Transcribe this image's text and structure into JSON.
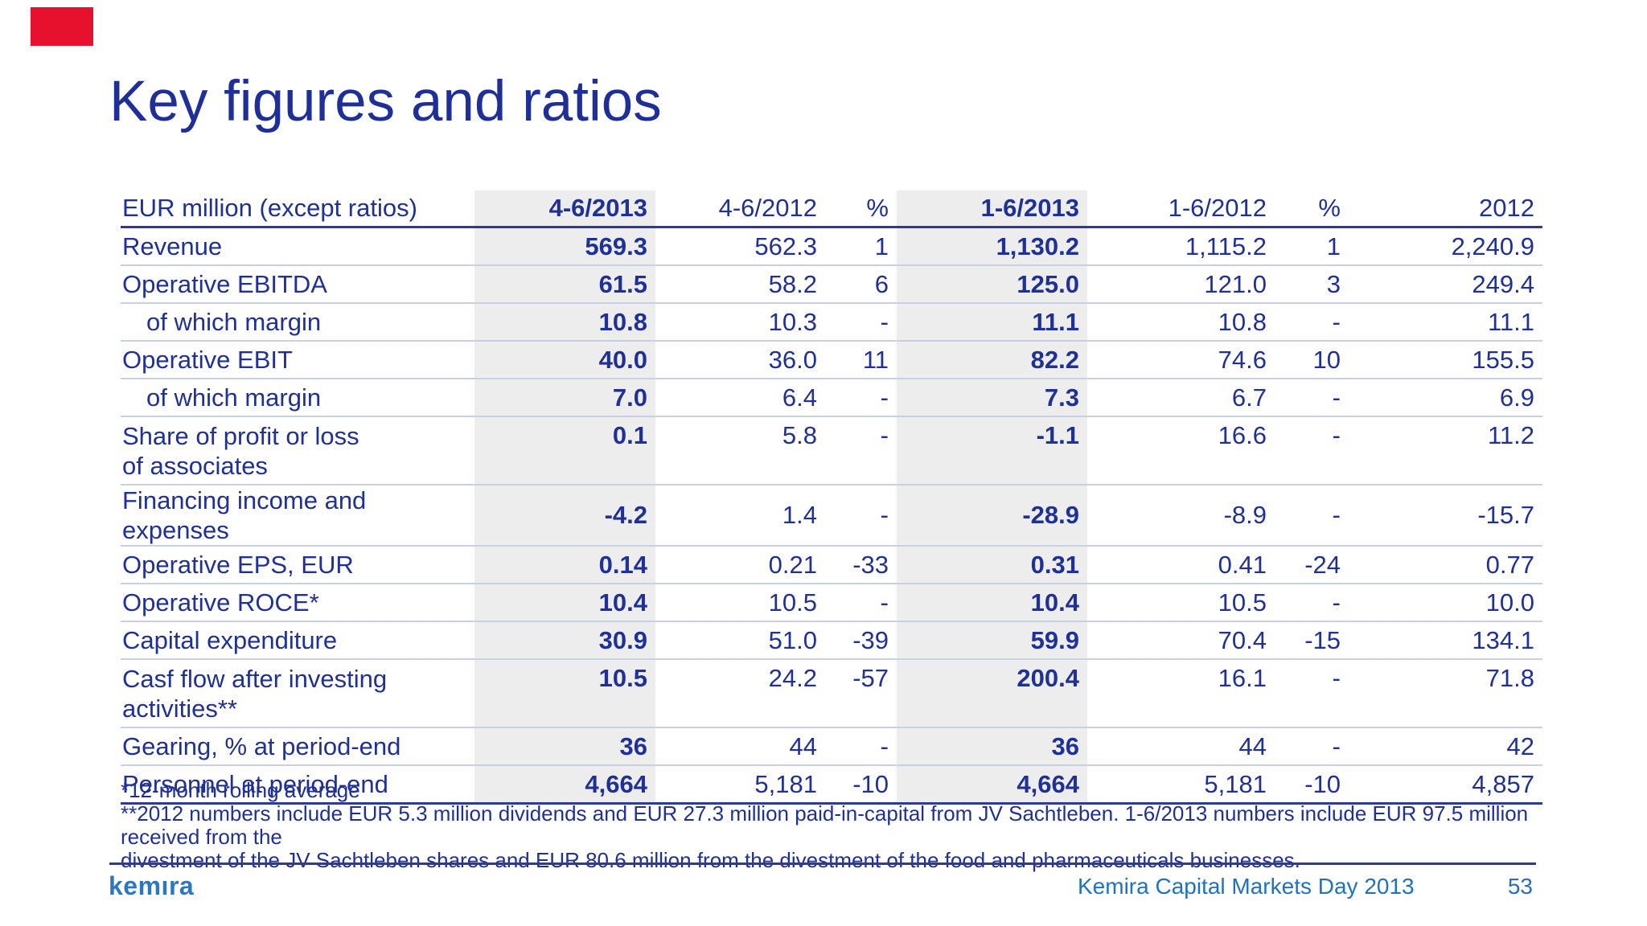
{
  "slide": {
    "title": "Key figures and ratios",
    "colors": {
      "navy_text": "#1f3096",
      "accent_red": "#e8112d",
      "footer_blue": "#1e73c0",
      "shaded_column_bg": "#ededed",
      "rule_navy": "#2e3b92",
      "row_divider": "#c9d0e4"
    }
  },
  "table": {
    "headers": [
      "EUR million (except ratios)",
      "4-6/2013",
      "4-6/2012",
      "%",
      "1-6/2013",
      "1-6/2012",
      "%",
      "2012"
    ],
    "rows": [
      {
        "label": "Revenue",
        "indent": false,
        "tall": false,
        "values": [
          "569.3",
          "562.3",
          "1",
          "1,130.2",
          "1,115.2",
          "1",
          "2,240.9"
        ]
      },
      {
        "label": "Operative EBITDA",
        "indent": false,
        "tall": false,
        "values": [
          "61.5",
          "58.2",
          "6",
          "125.0",
          "121.0",
          "3",
          "249.4"
        ]
      },
      {
        "label": "of which margin",
        "indent": true,
        "tall": false,
        "values": [
          "10.8",
          "10.3",
          "-",
          "11.1",
          "10.8",
          "-",
          "11.1"
        ]
      },
      {
        "label": "Operative EBIT",
        "indent": false,
        "tall": false,
        "values": [
          "40.0",
          "36.0",
          "11",
          "82.2",
          "74.6",
          "10",
          "155.5"
        ]
      },
      {
        "label": "of which margin",
        "indent": true,
        "tall": false,
        "values": [
          "7.0",
          "6.4",
          "-",
          "7.3",
          "6.7",
          "-",
          "6.9"
        ]
      },
      {
        "label": "Share of profit or loss\nof associates",
        "indent": false,
        "tall": true,
        "values": [
          "0.1",
          "5.8",
          "-",
          "-1.1",
          "16.6",
          "-",
          "11.2"
        ]
      },
      {
        "label": "Financing income and expenses",
        "indent": false,
        "tall": false,
        "values": [
          "-4.2",
          "1.4",
          "-",
          "-28.9",
          "-8.9",
          "-",
          "-15.7"
        ]
      },
      {
        "label": "Operative EPS, EUR",
        "indent": false,
        "tall": false,
        "values": [
          "0.14",
          "0.21",
          "-33",
          "0.31",
          "0.41",
          "-24",
          "0.77"
        ]
      },
      {
        "label": "Operative ROCE*",
        "indent": false,
        "tall": false,
        "values": [
          "10.4",
          "10.5",
          "-",
          "10.4",
          "10.5",
          "-",
          "10.0"
        ]
      },
      {
        "label": "Capital expenditure",
        "indent": false,
        "tall": false,
        "values": [
          "30.9",
          "51.0",
          "-39",
          "59.9",
          "70.4",
          "-15",
          "134.1"
        ]
      },
      {
        "label": "Casf flow after investing\nactivities**",
        "indent": false,
        "tall": true,
        "values": [
          "10.5",
          "24.2",
          "-57",
          "200.4",
          "16.1",
          "-",
          "71.8"
        ]
      },
      {
        "label": "Gearing, % at period-end",
        "indent": false,
        "tall": false,
        "values": [
          "36",
          "44",
          "-",
          "36",
          "44",
          "-",
          "42"
        ]
      },
      {
        "label": "Personnel at period-end",
        "indent": false,
        "tall": false,
        "values": [
          "4,664",
          "5,181",
          "-10",
          "4,664",
          "5,181",
          "-10",
          "4,857"
        ]
      }
    ],
    "shaded_value_columns": [
      0,
      3
    ]
  },
  "footnotes": {
    "rolling_average": "*12-month rolling average",
    "sachtleben": "**2012 numbers include EUR 5.3 million dividends and EUR 27.3 million paid-in-capital from JV Sachtleben. 1-6/2013 numbers include EUR 97.5 million received from the\ndivestment of the JV Sachtleben shares and EUR 80.6 million from the divestment of the food and pharmaceuticals businesses."
  },
  "footer": {
    "logo_text": "kemıra",
    "caption": "Kemira Capital Markets Day 2013",
    "page_number": "53"
  }
}
